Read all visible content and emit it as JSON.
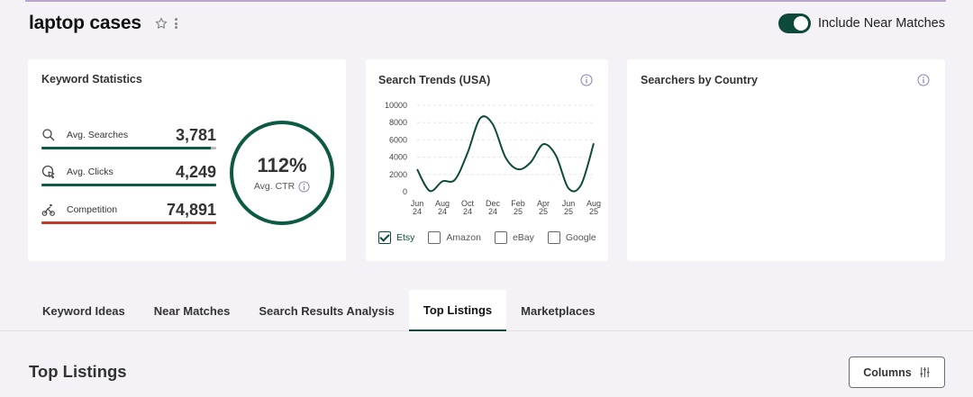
{
  "header": {
    "title": "laptop cases",
    "toggle_label": "Include Near Matches",
    "toggle_on": true
  },
  "keyword_stats": {
    "title": "Keyword Statistics",
    "items": [
      {
        "label": "Avg. Searches",
        "value": "3,781",
        "icon": "search-icon",
        "bar_color": "#0d5a44",
        "bar_fill": 0.97
      },
      {
        "label": "Avg. Clicks",
        "value": "4,249",
        "icon": "cursor-click-icon",
        "bar_color": "#0d5a44",
        "bar_fill": 1.0
      },
      {
        "label": "Competition",
        "value": "74,891",
        "icon": "competition-icon",
        "bar_color": "#c0392b",
        "bar_fill": 1.0
      }
    ],
    "ctr": {
      "value": "112%",
      "label": "Avg. CTR"
    }
  },
  "search_trends": {
    "title": "Search Trends (USA)",
    "legend": [
      {
        "label": "Etsy",
        "checked": true
      },
      {
        "label": "Amazon",
        "checked": false
      },
      {
        "label": "eBay",
        "checked": false
      },
      {
        "label": "Google",
        "checked": false
      }
    ]
  },
  "searchers_by_country": {
    "title": "Searchers by Country"
  },
  "chart_data": {
    "type": "line",
    "title": "Search Trends (USA)",
    "xlabel": "",
    "ylabel": "",
    "ylim": [
      0,
      10000
    ],
    "yticks": [
      0,
      2000,
      4000,
      6000,
      8000,
      10000
    ],
    "x_ticks": [
      "Jun 24",
      "Aug 24",
      "Oct 24",
      "Dec 24",
      "Feb 25",
      "Apr 25",
      "Jun 25",
      "Aug 25"
    ],
    "series": [
      {
        "name": "Etsy",
        "color": "#0d4a3c",
        "x": [
          "Jun 24",
          "Jul 24",
          "Aug 24",
          "Sep 24",
          "Oct 24",
          "Nov 24",
          "Dec 24",
          "Jan 25",
          "Feb 25",
          "Mar 25",
          "Apr 25",
          "May 25",
          "Jun 25",
          "Jul 25",
          "Aug 25"
        ],
        "values": [
          2600,
          100,
          1200,
          1400,
          4500,
          8500,
          7800,
          4000,
          2600,
          3400,
          5500,
          4200,
          400,
          800,
          5600
        ]
      }
    ],
    "grid": true
  },
  "tabs": [
    {
      "label": "Keyword Ideas",
      "active": false
    },
    {
      "label": "Near Matches",
      "active": false
    },
    {
      "label": "Search Results Analysis",
      "active": false
    },
    {
      "label": "Top Listings",
      "active": true
    },
    {
      "label": "Marketplaces",
      "active": false
    }
  ],
  "section": {
    "title": "Top Listings",
    "columns_label": "Columns"
  }
}
